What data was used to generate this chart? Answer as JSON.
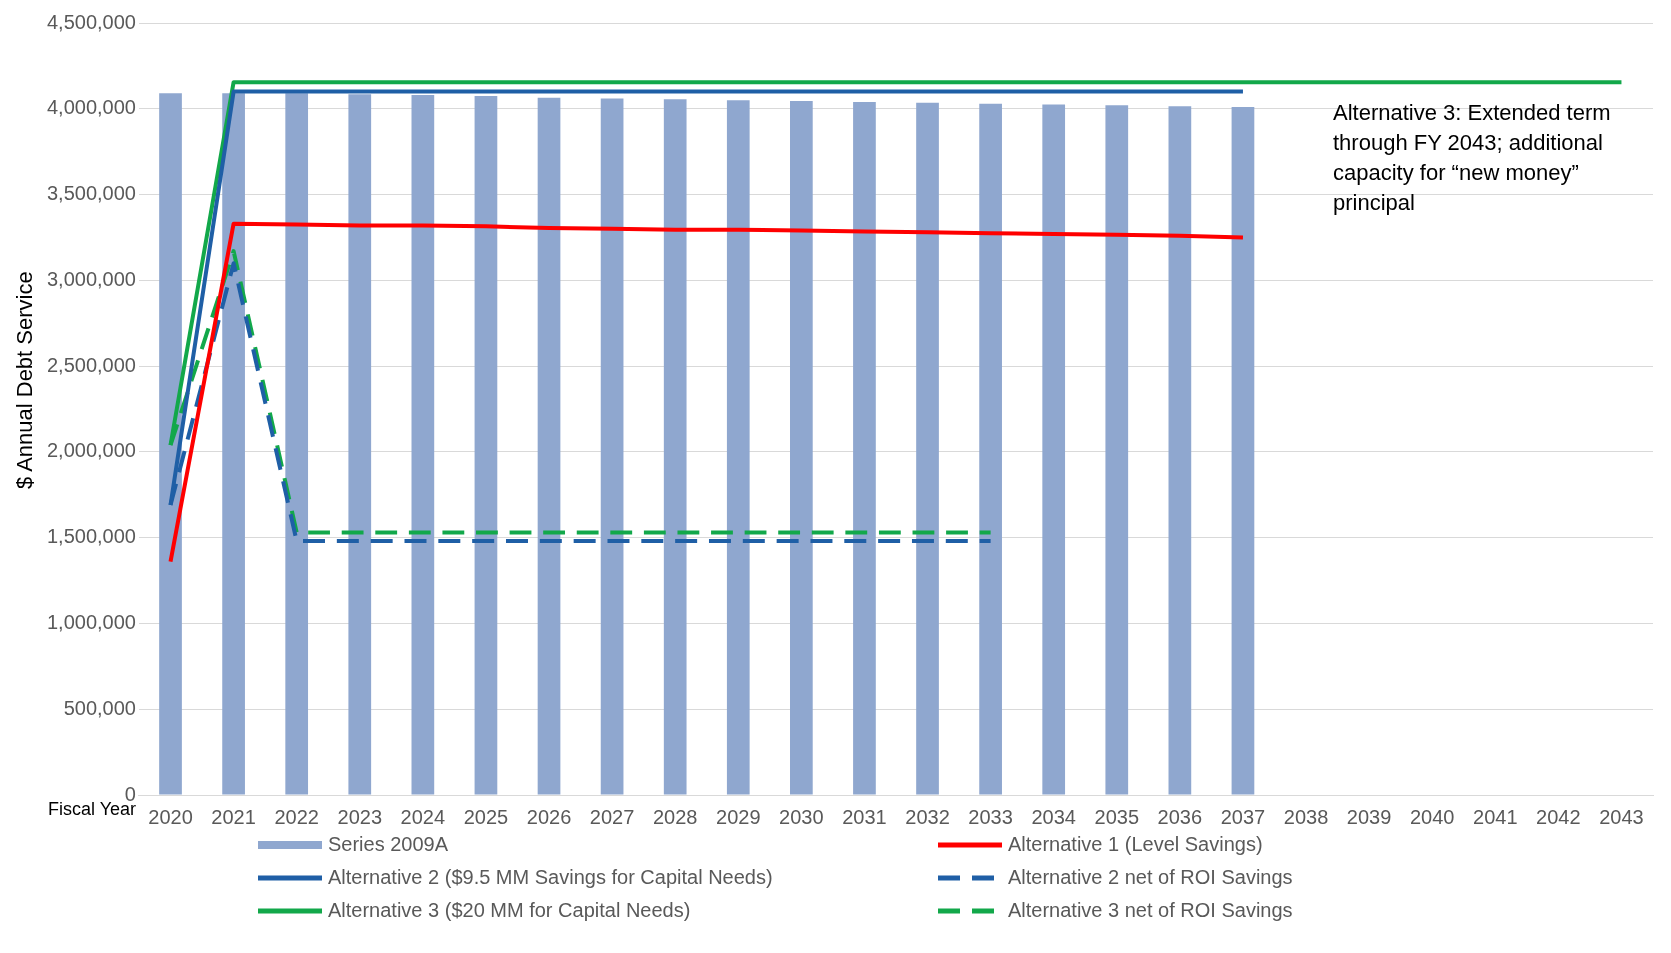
{
  "chart_data": {
    "type": "bar",
    "xlabel": "Fiscal Year",
    "ylabel": "$ Annual Debt Service",
    "categories": [
      "2020",
      "2021",
      "2022",
      "2023",
      "2024",
      "2025",
      "2026",
      "2027",
      "2028",
      "2029",
      "2030",
      "2031",
      "2032",
      "2033",
      "2034",
      "2035",
      "2036",
      "2037",
      "2038",
      "2039",
      "2040",
      "2041",
      "2042",
      "2043"
    ],
    "series": [
      {
        "name": "Series 2009A",
        "color": "#8fa7cf",
        "values": [
          4090000,
          4090000,
          4090000,
          4085000,
          4080000,
          4075000,
          4065000,
          4060000,
          4055000,
          4050000,
          4045000,
          4040000,
          4035000,
          4030000,
          4025000,
          4020000,
          4015000,
          4010000,
          null,
          null,
          null,
          null,
          null,
          null
        ]
      },
      {
        "name": "Alternative 1 (Level Savings)",
        "type": "line",
        "color": "#ff0000",
        "line_style": "solid",
        "values": [
          1360000,
          3330000,
          3325000,
          3320000,
          3320000,
          3315000,
          3305000,
          3300000,
          3295000,
          3295000,
          3290000,
          3285000,
          3280000,
          3275000,
          3270000,
          3265000,
          3260000,
          3250000,
          null,
          null,
          null,
          null,
          null,
          null
        ]
      },
      {
        "name": "Alternative 2 ($9.5 MM Savings for Capital Needs)",
        "type": "line",
        "color": "#1f5fa6",
        "line_style": "solid",
        "values": [
          1690000,
          4100000,
          4100000,
          4100000,
          4100000,
          4100000,
          4100000,
          4100000,
          4100000,
          4100000,
          4100000,
          4100000,
          4100000,
          4100000,
          4100000,
          4100000,
          4100000,
          4100000,
          null,
          null,
          null,
          null,
          null,
          null
        ]
      },
      {
        "name": "Alternative 2 net of ROI Savings",
        "type": "line",
        "color": "#1f5fa6",
        "line_style": "dashed",
        "values": [
          1690000,
          3100000,
          1480000,
          1480000,
          1480000,
          1480000,
          1480000,
          1480000,
          1480000,
          1480000,
          1480000,
          1480000,
          1480000,
          1480000,
          null,
          null,
          null,
          null,
          null,
          null,
          null,
          null,
          null,
          null
        ]
      },
      {
        "name": "Alternative 3 ($20 MM for Capital Needs)",
        "type": "line",
        "color": "#12a84a",
        "line_style": "solid",
        "values": [
          2040000,
          4155000,
          4155000,
          4155000,
          4155000,
          4155000,
          4155000,
          4155000,
          4155000,
          4155000,
          4155000,
          4155000,
          4155000,
          4155000,
          4155000,
          4155000,
          4155000,
          4155000,
          4155000,
          4155000,
          4155000,
          4155000,
          4155000,
          4155000
        ]
      },
      {
        "name": "Alternative 3 net of ROI Savings",
        "type": "line",
        "color": "#12a84a",
        "line_style": "dashed",
        "values": [
          2040000,
          3170000,
          1530000,
          1530000,
          1530000,
          1530000,
          1530000,
          1530000,
          1530000,
          1530000,
          1530000,
          1530000,
          1530000,
          1530000,
          null,
          null,
          null,
          null,
          null,
          null,
          null,
          null,
          null,
          null
        ]
      }
    ],
    "ylim": [
      0,
      4500000
    ],
    "yticks": [
      {
        "value": 0,
        "label": "0"
      },
      {
        "value": 500000,
        "label": "500,000"
      },
      {
        "value": 1000000,
        "label": "1,000,000"
      },
      {
        "value": 1500000,
        "label": "1,500,000"
      },
      {
        "value": 2000000,
        "label": "2,000,000"
      },
      {
        "value": 2500000,
        "label": "2,500,000"
      },
      {
        "value": 3000000,
        "label": "3,000,000"
      },
      {
        "value": 3500000,
        "label": "3,500,000"
      },
      {
        "value": 4000000,
        "label": "4,000,000"
      },
      {
        "value": 4500000,
        "label": "4,500,000"
      }
    ],
    "grid": "y",
    "legend": "bottom",
    "marker": "none",
    "annotations": [
      "Alternative 3: Extended term through FY 2043; additional capacity for “new money” principal"
    ]
  }
}
